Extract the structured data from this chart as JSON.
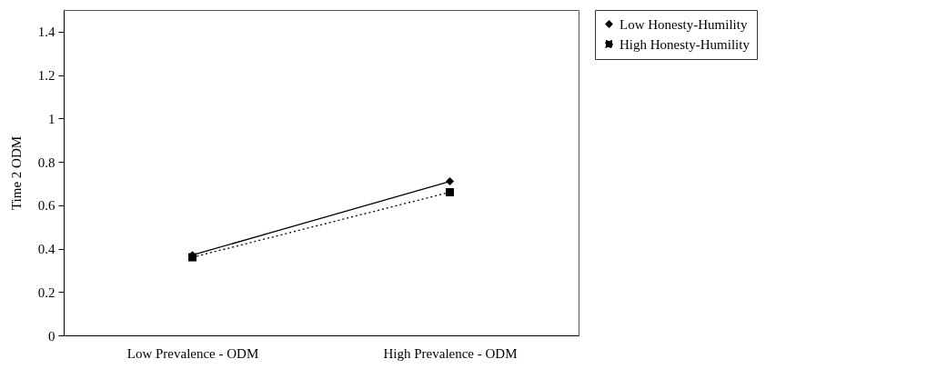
{
  "chart_data": {
    "type": "line",
    "ylabel": "Time 2 ODM",
    "categories": [
      "Low Prevalence - ODM",
      "High Prevalence - ODM"
    ],
    "series": [
      {
        "name": "Low Honesty-Humility",
        "color": "#000000",
        "values": [
          0.37,
          0.71
        ],
        "marker": "diamond",
        "line_style": "solid"
      },
      {
        "name": "High Honesty-Humility",
        "color": "#000000",
        "values": [
          0.36,
          0.66
        ],
        "marker": "square",
        "line_style": "dotted"
      }
    ],
    "ylim": [
      0,
      1.5
    ],
    "yticks": [
      0,
      0.2,
      0.4,
      0.6,
      0.8,
      1,
      1.2,
      1.4
    ],
    "grid": false,
    "legend": "right"
  }
}
